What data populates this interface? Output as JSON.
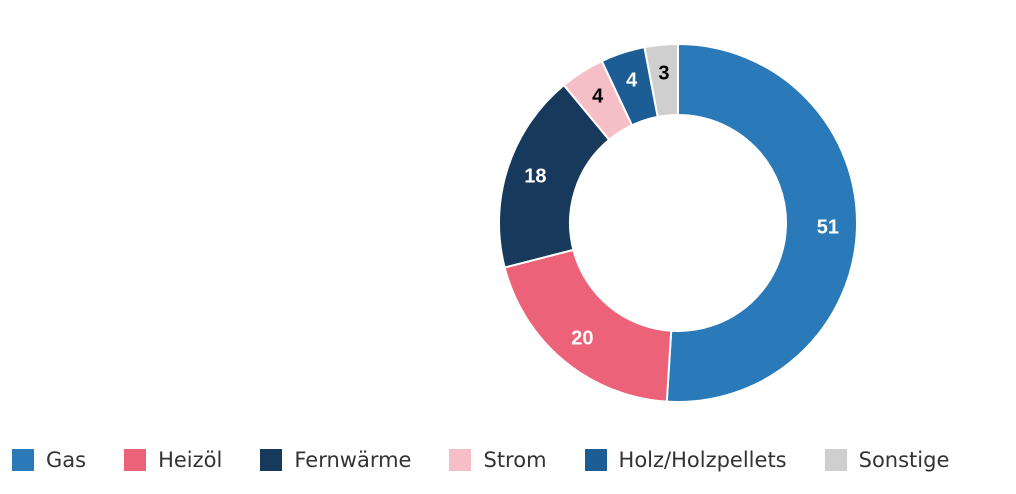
{
  "chart_data": {
    "type": "pie",
    "variant": "donut",
    "categories": [
      "Gas",
      "Heizöl",
      "Fernwärme",
      "Strom",
      "Holz/Holzpellets",
      "Sonstige"
    ],
    "values": [
      51,
      20,
      18,
      4,
      4,
      3
    ],
    "colors": [
      "#2a7ab9",
      "#ec6279",
      "#173a5c",
      "#f6bfc8",
      "#1d5d95",
      "#cfcfcf"
    ],
    "label_colors": [
      "#ffffff",
      "#ffffff",
      "#ffffff",
      "#000000",
      "#ffffff",
      "#000000"
    ],
    "legend_position": "bottom-left",
    "data_labels": true
  }
}
